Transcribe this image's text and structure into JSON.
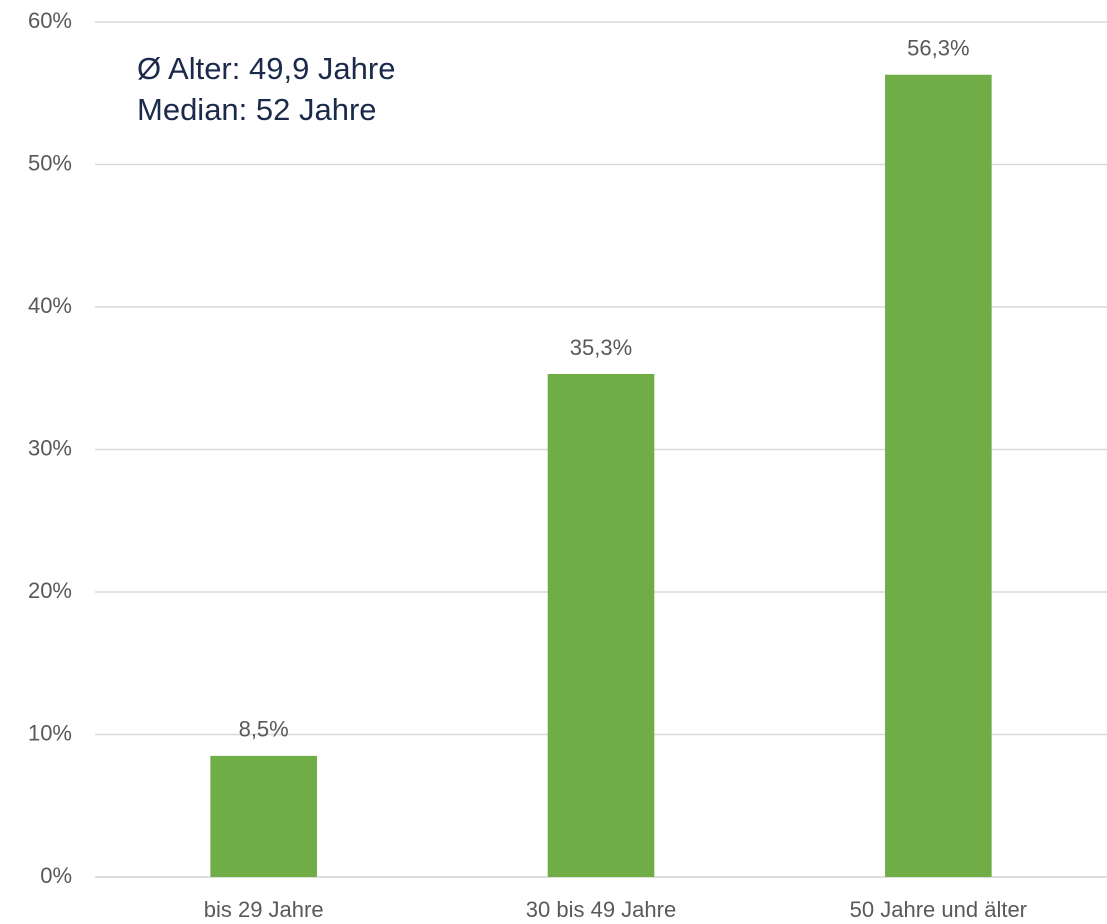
{
  "chart_data": {
    "type": "bar",
    "categories": [
      "bis 29 Jahre",
      "30 bis 49 Jahre",
      "50 Jahre und älter"
    ],
    "values": [
      8.5,
      35.3,
      56.3
    ],
    "value_labels": [
      "8,5%",
      "35,3%",
      "56,3%"
    ],
    "color": "#70ad47",
    "ylim": [
      0,
      60
    ],
    "yticks": [
      {
        "value": 0,
        "label": "0%"
      },
      {
        "value": 10,
        "label": "10%"
      },
      {
        "value": 20,
        "label": "20%"
      },
      {
        "value": 30,
        "label": "30%"
      },
      {
        "value": 40,
        "label": "40%"
      },
      {
        "value": 50,
        "label": "50%"
      },
      {
        "value": 60,
        "label": "60%"
      }
    ],
    "grid": true,
    "annotations": [
      "Ø Alter: 49,9 Jahre",
      "Median: 52 Jahre"
    ]
  }
}
